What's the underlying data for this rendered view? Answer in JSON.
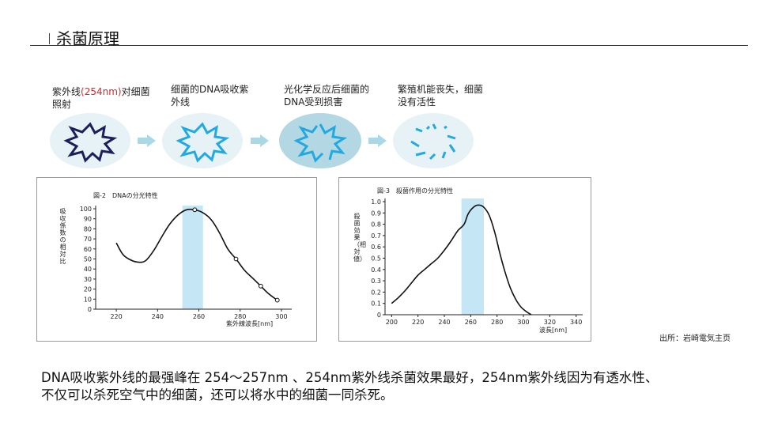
{
  "header": {
    "title": "杀菌原理"
  },
  "process": {
    "steps": [
      {
        "text_main": "紫外线",
        "text_highlight": "(254nm)",
        "text_rest": "对细菌照射"
      },
      {
        "text_main": "细菌的DNA吸收紫外线",
        "text_highlight": "",
        "text_rest": ""
      },
      {
        "text_main": "光化学反应后细菌的DNA受到损害",
        "text_highlight": "",
        "text_rest": ""
      },
      {
        "text_main": "繁殖机能丧失，细菌没有活性",
        "text_highlight": "",
        "text_rest": ""
      }
    ],
    "colors": {
      "bubble": "#e6f2f6",
      "bubble_dark": "#b3d8e3",
      "star_dark": "#1c1f5e",
      "star_light": "#22a9e1",
      "arrow": "#a9d8e6",
      "highlight": "#d9262b"
    }
  },
  "chart_data": [
    {
      "type": "line",
      "title": "図-2　DNAの分光特性",
      "ylabel": "吸収係数の相対比",
      "xlabel": "紫外線波長[nm]",
      "xlim": [
        210,
        305
      ],
      "ylim": [
        0,
        100
      ],
      "x_ticks": [
        220,
        240,
        260,
        280,
        300
      ],
      "y_ticks": [
        0,
        10,
        20,
        30,
        40,
        50,
        60,
        70,
        80,
        90,
        100
      ],
      "highlight_band": [
        252,
        262
      ],
      "series": [
        {
          "x": [
            220,
            223,
            226,
            230,
            234,
            238,
            242,
            246,
            250,
            254,
            258,
            262,
            266,
            270,
            274,
            278,
            282,
            286,
            290,
            294,
            298
          ],
          "values": [
            66,
            55,
            50,
            47,
            48,
            58,
            72,
            85,
            94,
            99,
            99,
            96,
            89,
            76,
            60,
            50,
            39,
            31,
            23,
            15,
            9
          ]
        }
      ],
      "markers": [
        {
          "x": 258,
          "y": 99
        },
        {
          "x": 278,
          "y": 50
        },
        {
          "x": 290,
          "y": 23
        },
        {
          "x": 298,
          "y": 9
        }
      ]
    },
    {
      "type": "line",
      "title": "図-3　殺菌作用の分光特性",
      "ylabel": "殺菌効果（相対値）",
      "xlabel": "波長[nm]",
      "xlim": [
        195,
        345
      ],
      "ylim": [
        0,
        1.0
      ],
      "x_ticks": [
        200,
        220,
        240,
        260,
        280,
        300,
        320,
        340
      ],
      "y_ticks": [
        0,
        0.1,
        0.2,
        0.3,
        0.4,
        0.5,
        0.6,
        0.7,
        0.8,
        0.9,
        1.0
      ],
      "y_tick_labels": [
        "0",
        "0.1",
        "0.2",
        "0.3",
        "0.4",
        "0.5",
        "0.6",
        "0.7",
        "0.8",
        "0.9",
        "1.0"
      ],
      "highlight_band": [
        253,
        270
      ],
      "series": [
        {
          "x": [
            200,
            205,
            210,
            215,
            220,
            225,
            230,
            235,
            240,
            245,
            250,
            255,
            258,
            262,
            266,
            270,
            274,
            278,
            282,
            286,
            290,
            294,
            298,
            302,
            306
          ],
          "values": [
            0.1,
            0.15,
            0.21,
            0.28,
            0.35,
            0.4,
            0.45,
            0.5,
            0.57,
            0.65,
            0.74,
            0.8,
            0.89,
            0.95,
            0.97,
            0.95,
            0.88,
            0.74,
            0.55,
            0.38,
            0.24,
            0.14,
            0.07,
            0.03,
            0.0
          ]
        }
      ]
    }
  ],
  "source": {
    "text": "出所：岩崎電気主页"
  },
  "description": {
    "line1": "DNA吸收紫外线的最强峰在 254～257nm 、254nm紫外线杀菌效果最好，254nm紫外线因为有透水性、",
    "line2": "不仅可以杀死空气中的细菌，还可以将水中的细菌一同杀死。"
  }
}
